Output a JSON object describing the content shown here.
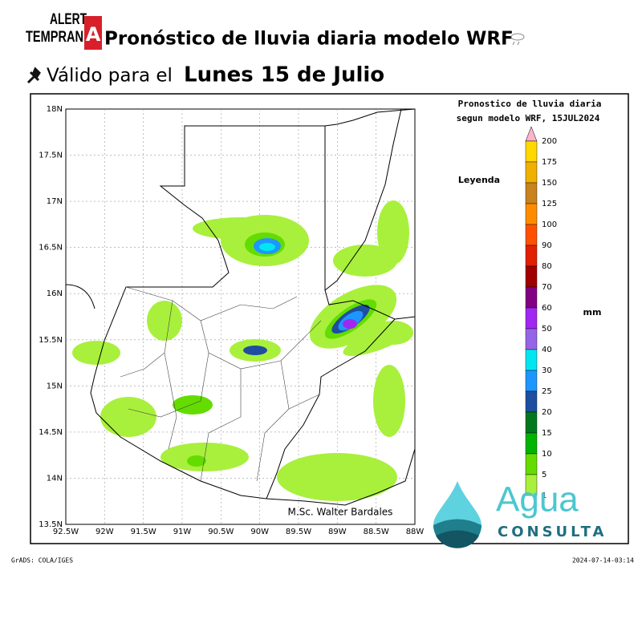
{
  "header": {
    "logo_top": "ALERT",
    "logo_bottom": "TEMPRAN",
    "logo_letter": "A",
    "title": "Pronóstico de lluvia diaria modelo WRF",
    "subtitle_prefix": "Válido para el",
    "subtitle_date": "Lunes 15 de Julio"
  },
  "map": {
    "title_line1": "Pronostico de lluvia diaria",
    "title_line2": "segun modelo WRF,  15JUL2024",
    "legend_label": "Leyenda",
    "unit": "mm",
    "credit": "M.Sc. Walter Bardales",
    "lat_labels": [
      "18N",
      "17.5N",
      "17N",
      "16.5N",
      "16N",
      "15.5N",
      "15N",
      "14.5N",
      "14N",
      "13.5N"
    ],
    "lon_labels": [
      "92.5W",
      "92W",
      "91.5W",
      "91W",
      "90.5W",
      "90W",
      "89.5W",
      "89W",
      "88.5W",
      "88W"
    ],
    "legend": {
      "labels": [
        "200",
        "175",
        "150",
        "125",
        "100",
        "90",
        "80",
        "70",
        "60",
        "50",
        "40",
        "30",
        "25",
        "20",
        "15",
        "10",
        "5",
        "1"
      ],
      "colors": [
        "#ffff80",
        "#ffd800",
        "#f0b000",
        "#c8821e",
        "#ff8c00",
        "#ff5000",
        "#e02000",
        "#a00000",
        "#820082",
        "#a028f0",
        "#9664e6",
        "#00e6f0",
        "#1e96ff",
        "#1e4ea0",
        "#007820",
        "#00b400",
        "#64dc00",
        "#a8f03c"
      ]
    }
  },
  "footer": {
    "left": "GrADS: COLA/IGES",
    "right": "2024-07-14-03:14"
  },
  "brand": {
    "name": "Agua",
    "tagline": "CONSULTA"
  }
}
